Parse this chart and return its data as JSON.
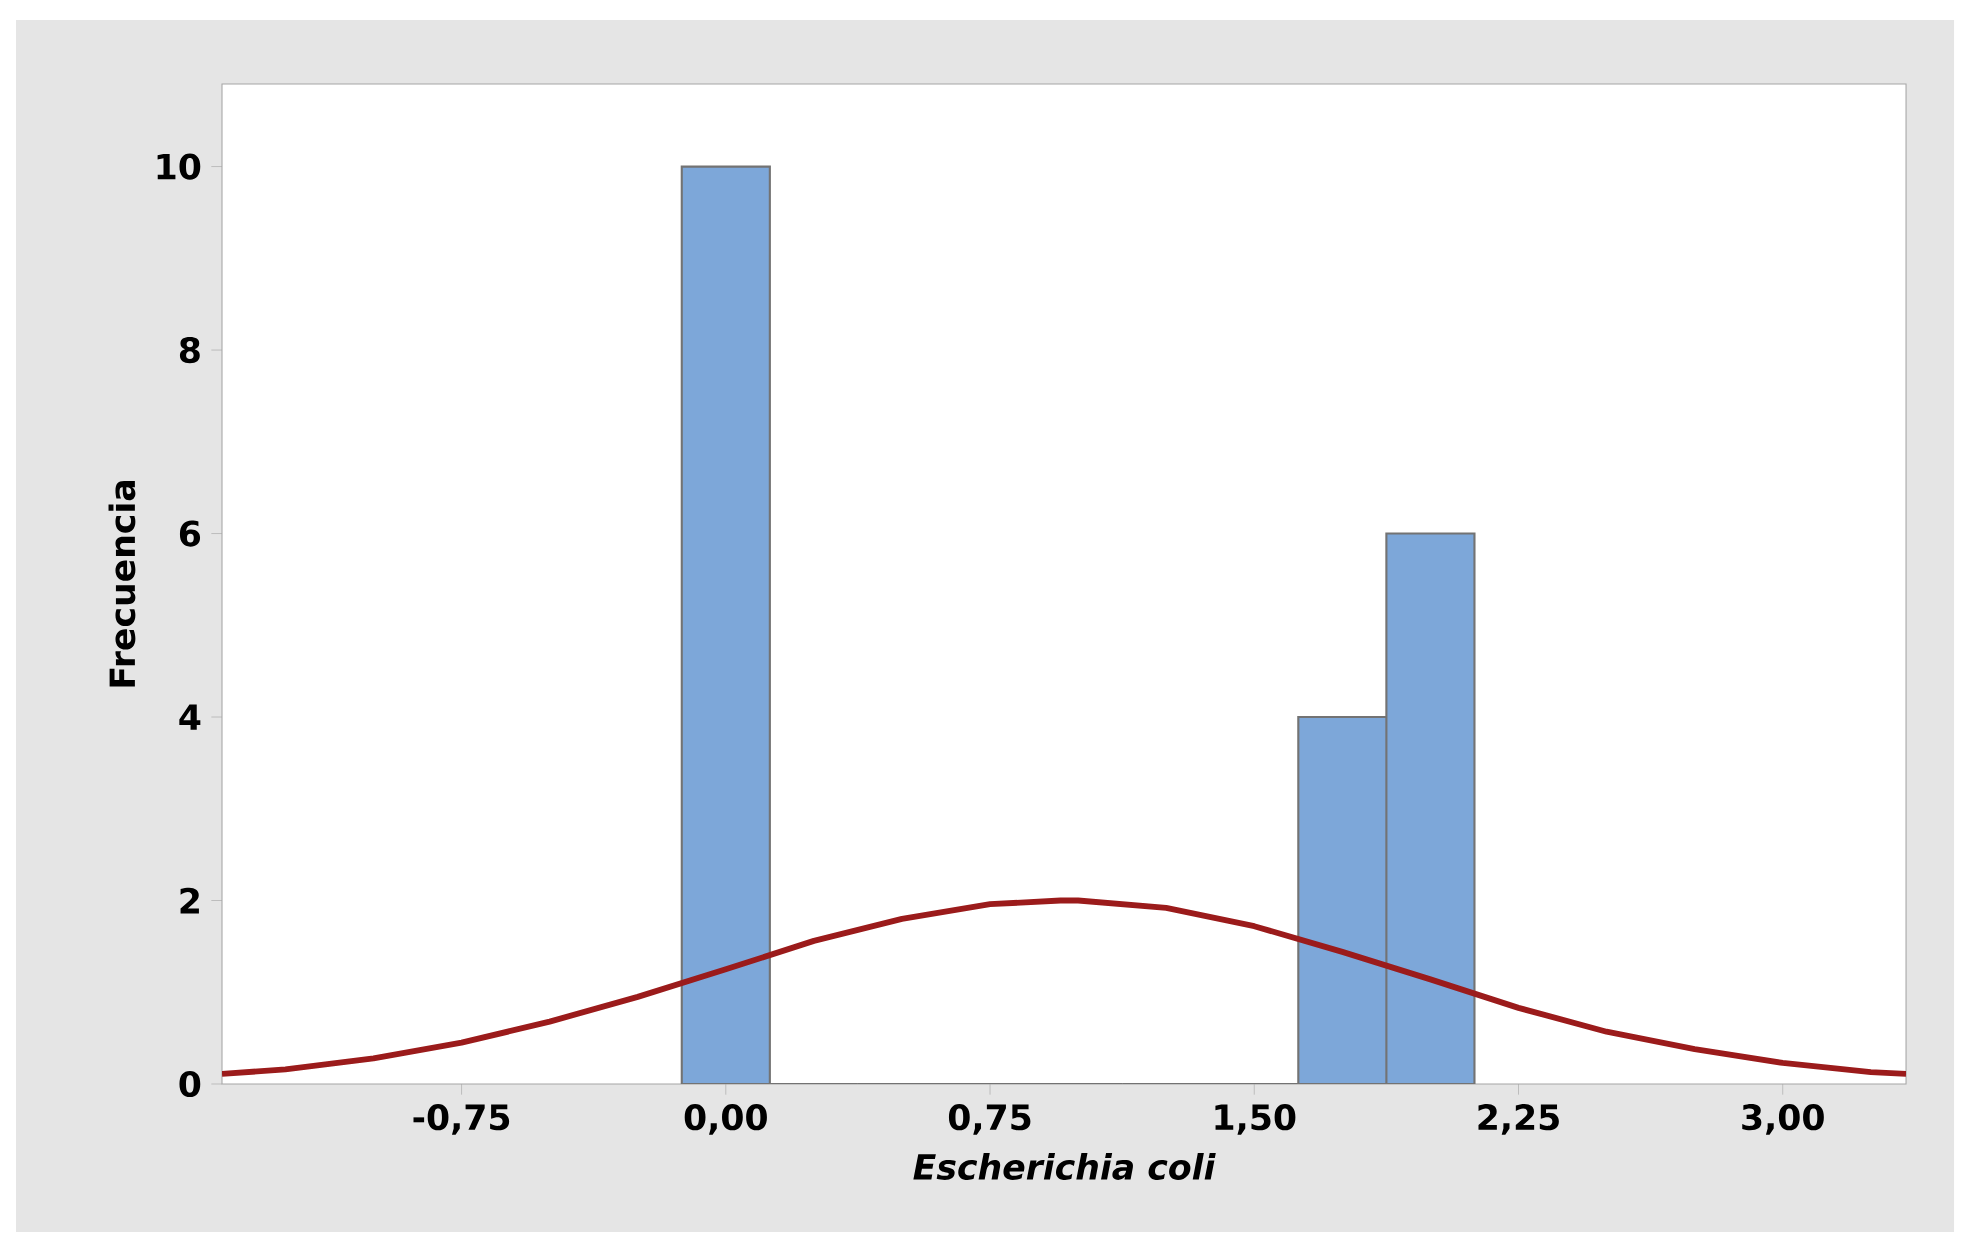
{
  "chart_data": {
    "type": "histogram",
    "xlabel": "Escherichia coli",
    "ylabel": "Frecuencia",
    "bins": [
      -0.125,
      0.125,
      0.375,
      0.625,
      0.875,
      1.125,
      1.375,
      1.625,
      1.875,
      2.125
    ],
    "values": [
      10,
      0,
      0,
      0,
      0,
      0,
      0,
      4,
      6
    ],
    "color": "#7da7d9",
    "series": [
      {
        "type": "line",
        "color": "#9b1b1b",
        "x": [
          -1.43,
          -1.25,
          -1.0,
          -0.75,
          -0.5,
          -0.25,
          0,
          0.25,
          0.5,
          0.75,
          0.95,
          1.0,
          1.25,
          1.5,
          1.75,
          2.0,
          2.25,
          2.5,
          2.75,
          3.0,
          3.25,
          3.35
        ],
        "values": [
          0.11,
          0.16,
          0.28,
          0.45,
          0.68,
          0.95,
          1.25,
          1.56,
          1.8,
          1.96,
          2.0,
          2.0,
          1.92,
          1.72,
          1.44,
          1.14,
          0.83,
          0.57,
          0.38,
          0.23,
          0.13,
          0.11
        ]
      }
    ],
    "xlim": [
      -1.43,
      3.35
    ],
    "ylim": [
      0,
      10.9
    ],
    "xticks": [
      {
        "value": -0.75,
        "label": "-0,75"
      },
      {
        "value": 0,
        "label": "0,00"
      },
      {
        "value": 0.75,
        "label": "0,75"
      },
      {
        "value": 1.5,
        "label": "1,50"
      },
      {
        "value": 2.25,
        "label": "2,25"
      },
      {
        "value": 3.0,
        "label": "3,00"
      }
    ],
    "yticks": [
      0,
      2,
      4,
      6,
      8,
      10
    ]
  }
}
